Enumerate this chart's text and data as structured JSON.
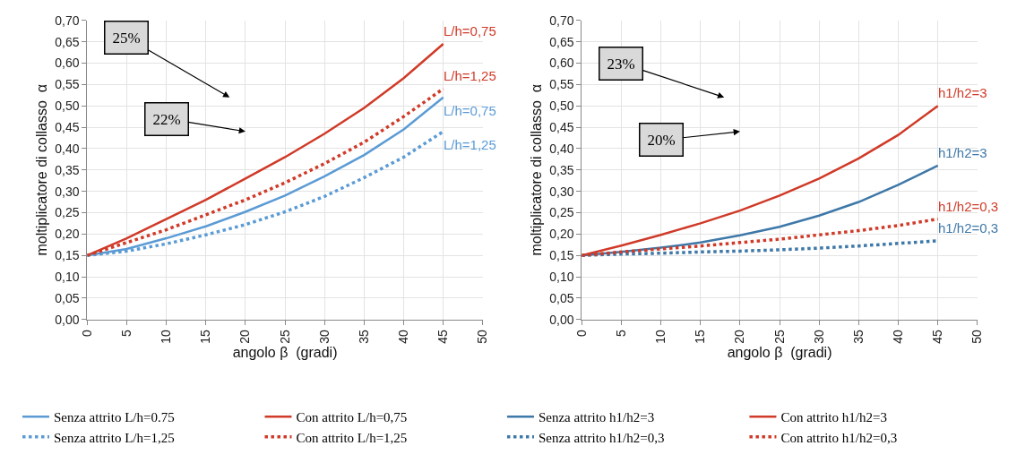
{
  "chart_data": [
    {
      "type": "line",
      "xlabel": "angolo β  (gradi)",
      "ylabel": "moltiplicatore di collasso  α",
      "x": [
        0,
        5,
        10,
        15,
        20,
        25,
        30,
        35,
        40,
        45
      ],
      "series": [
        {
          "name": "Senza attrito L/h=0.75",
          "color": "#5b9bd5",
          "line_style": "solid",
          "values": [
            0.15,
            0.165,
            0.19,
            0.218,
            0.252,
            0.29,
            0.335,
            0.385,
            0.445,
            0.52
          ]
        },
        {
          "name": "Con attrito L/h=0,75",
          "color": "#d03a28",
          "line_style": "solid",
          "values": [
            0.15,
            0.19,
            0.235,
            0.28,
            0.33,
            0.38,
            0.435,
            0.495,
            0.565,
            0.645
          ]
        },
        {
          "name": "Senza attrito L/h=1,25",
          "color": "#5b9bd5",
          "line_style": "dotted",
          "values": [
            0.15,
            0.16,
            0.177,
            0.198,
            0.222,
            0.252,
            0.288,
            0.332,
            0.38,
            0.44
          ]
        },
        {
          "name": "Con attrito L/h=1,25",
          "color": "#d03a28",
          "line_style": "dotted",
          "values": [
            0.15,
            0.18,
            0.21,
            0.245,
            0.28,
            0.32,
            0.365,
            0.415,
            0.475,
            0.54
          ]
        }
      ],
      "annotations": [
        "L/h=0,75",
        "L/h=0,75",
        "L/h=1,25",
        "L/h=1,25",
        "25%",
        "22%"
      ],
      "xlim": [
        0,
        50
      ],
      "xticks": [
        0,
        5,
        10,
        15,
        20,
        25,
        30,
        35,
        40,
        45,
        50
      ],
      "ylim": [
        0,
        0.7
      ],
      "yticks": [
        {
          "value": 0,
          "label": "0,00"
        },
        {
          "value": 0.05,
          "label": "0,05"
        },
        {
          "value": 0.1,
          "label": "0,10"
        },
        {
          "value": 0.15,
          "label": "0,15"
        },
        {
          "value": 0.2,
          "label": "0,20"
        },
        {
          "value": 0.25,
          "label": "0,25"
        },
        {
          "value": 0.3,
          "label": "0,30"
        },
        {
          "value": 0.35,
          "label": "0,35"
        },
        {
          "value": 0.4,
          "label": "0,40"
        },
        {
          "value": 0.45,
          "label": "0,45"
        },
        {
          "value": 0.5,
          "label": "0,50"
        },
        {
          "value": 0.55,
          "label": "0,55"
        },
        {
          "value": 0.6,
          "label": "0,60"
        },
        {
          "value": 0.65,
          "label": "0,65"
        },
        {
          "value": 0.7,
          "label": "0,70"
        }
      ],
      "grid": true,
      "legend": "bottom",
      "marker": "none"
    },
    {
      "type": "line",
      "xlabel": "angolo β  (gradi)",
      "ylabel": "moltiplicatore di collasso  α",
      "x": [
        0,
        5,
        10,
        15,
        20,
        25,
        30,
        35,
        40,
        45
      ],
      "series": [
        {
          "name": "Senza attrito h1/h2=3",
          "color": "#3e78a8",
          "line_style": "solid",
          "values": [
            0.15,
            0.158,
            0.168,
            0.18,
            0.197,
            0.217,
            0.243,
            0.275,
            0.315,
            0.36
          ]
        },
        {
          "name": "Con attrito h1/h2=3",
          "color": "#d03a28",
          "line_style": "solid",
          "values": [
            0.15,
            0.173,
            0.198,
            0.225,
            0.255,
            0.29,
            0.33,
            0.377,
            0.432,
            0.5
          ]
        },
        {
          "name": "Senza attrito h1/h2=0,3",
          "color": "#3e78a8",
          "line_style": "dotted",
          "values": [
            0.15,
            0.153,
            0.155,
            0.158,
            0.16,
            0.163,
            0.167,
            0.172,
            0.178,
            0.184
          ]
        },
        {
          "name": "Con attrito h1/h2=0,3",
          "color": "#d03a28",
          "line_style": "dotted",
          "values": [
            0.15,
            0.158,
            0.165,
            0.172,
            0.18,
            0.188,
            0.198,
            0.208,
            0.22,
            0.235
          ]
        }
      ],
      "annotations": [
        "h1/h2=3",
        "h1/h2=3",
        "h1/h2=0,3",
        "h1/h2=0,3",
        "23%",
        "20%"
      ],
      "xlim": [
        0,
        50
      ],
      "xticks": [
        0,
        5,
        10,
        15,
        20,
        25,
        30,
        35,
        40,
        45,
        50
      ],
      "ylim": [
        0,
        0.7
      ],
      "yticks": [
        {
          "value": 0,
          "label": "0,00"
        },
        {
          "value": 0.05,
          "label": "0,05"
        },
        {
          "value": 0.1,
          "label": "0,10"
        },
        {
          "value": 0.15,
          "label": "0,15"
        },
        {
          "value": 0.2,
          "label": "0,20"
        },
        {
          "value": 0.25,
          "label": "0,25"
        },
        {
          "value": 0.3,
          "label": "0,30"
        },
        {
          "value": 0.35,
          "label": "0,35"
        },
        {
          "value": 0.4,
          "label": "0,40"
        },
        {
          "value": 0.45,
          "label": "0,45"
        },
        {
          "value": 0.5,
          "label": "0,50"
        },
        {
          "value": 0.55,
          "label": "0,55"
        },
        {
          "value": 0.6,
          "label": "0,60"
        },
        {
          "value": 0.65,
          "label": "0,65"
        },
        {
          "value": 0.7,
          "label": "0,70"
        }
      ],
      "grid": true,
      "legend": "bottom",
      "marker": "none"
    }
  ]
}
